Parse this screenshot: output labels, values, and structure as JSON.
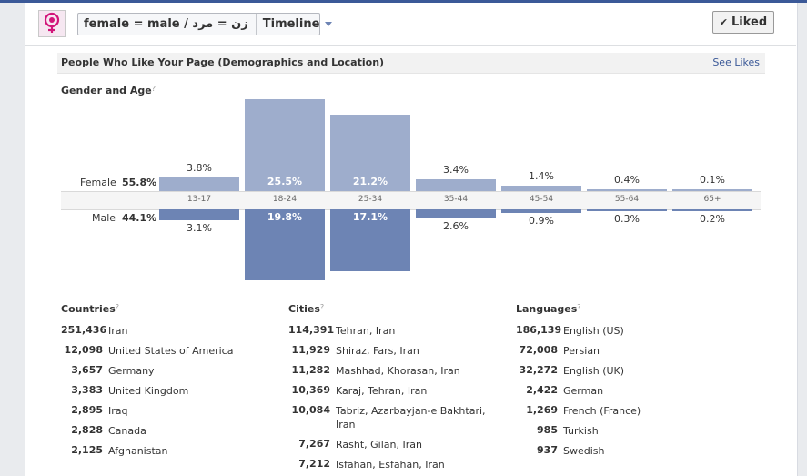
{
  "page": {
    "title": "female = male / زن = مرد",
    "view_selector": "Timeline",
    "liked_button": "Liked"
  },
  "section": {
    "title": "People Who Like Your Page (Demographics and Location)",
    "link": "See Likes"
  },
  "gender_age": {
    "title": "Gender and Age",
    "female_label": "Female",
    "female_pct": "55.8%",
    "male_label": "Male",
    "male_pct": "44.1%",
    "groups": [
      {
        "age": "13-17",
        "female": 3.8,
        "female_text": "3.8%",
        "male": 3.1,
        "male_text": "3.1%"
      },
      {
        "age": "18-24",
        "female": 25.5,
        "female_text": "25.5%",
        "male": 19.8,
        "male_text": "19.8%"
      },
      {
        "age": "25-34",
        "female": 21.2,
        "female_text": "21.2%",
        "male": 17.1,
        "male_text": "17.1%"
      },
      {
        "age": "35-44",
        "female": 3.4,
        "female_text": "3.4%",
        "male": 2.6,
        "male_text": "2.6%"
      },
      {
        "age": "45-54",
        "female": 1.4,
        "female_text": "1.4%",
        "male": 0.9,
        "male_text": "0.9%"
      },
      {
        "age": "55-64",
        "female": 0.4,
        "female_text": "0.4%",
        "male": 0.3,
        "male_text": "0.3%"
      },
      {
        "age": "65+",
        "female": 0.1,
        "female_text": "0.1%",
        "male": 0.2,
        "male_text": "0.2%"
      }
    ]
  },
  "countries": {
    "title": "Countries",
    "rows": [
      {
        "count": "251,436",
        "name": "Iran"
      },
      {
        "count": "12,098",
        "name": "United States of America"
      },
      {
        "count": "3,657",
        "name": "Germany"
      },
      {
        "count": "3,383",
        "name": "United Kingdom"
      },
      {
        "count": "2,895",
        "name": "Iraq"
      },
      {
        "count": "2,828",
        "name": "Canada"
      },
      {
        "count": "2,125",
        "name": "Afghanistan"
      }
    ]
  },
  "cities": {
    "title": "Cities",
    "rows": [
      {
        "count": "114,391",
        "name": "Tehran, Iran"
      },
      {
        "count": "11,929",
        "name": "Shiraz, Fars, Iran"
      },
      {
        "count": "11,282",
        "name": "Mashhad, Khorasan, Iran"
      },
      {
        "count": "10,369",
        "name": "Karaj, Tehran, Iran"
      },
      {
        "count": "10,084",
        "name": "Tabriz, Azarbayjan-e Bakhtari, Iran"
      },
      {
        "count": "7,267",
        "name": "Rasht, Gilan, Iran"
      },
      {
        "count": "7,212",
        "name": "Isfahan, Esfahan, Iran"
      }
    ]
  },
  "languages": {
    "title": "Languages",
    "rows": [
      {
        "count": "186,139",
        "name": "English (US)"
      },
      {
        "count": "72,008",
        "name": "Persian"
      },
      {
        "count": "32,272",
        "name": "English (UK)"
      },
      {
        "count": "2,422",
        "name": "German"
      },
      {
        "count": "1,269",
        "name": "French (France)"
      },
      {
        "count": "985",
        "name": "Turkish"
      },
      {
        "count": "937",
        "name": "Swedish"
      }
    ]
  },
  "colors": {
    "female_bar": "#9eadcc",
    "male_bar": "#6d84b4",
    "link": "#3b5998"
  }
}
